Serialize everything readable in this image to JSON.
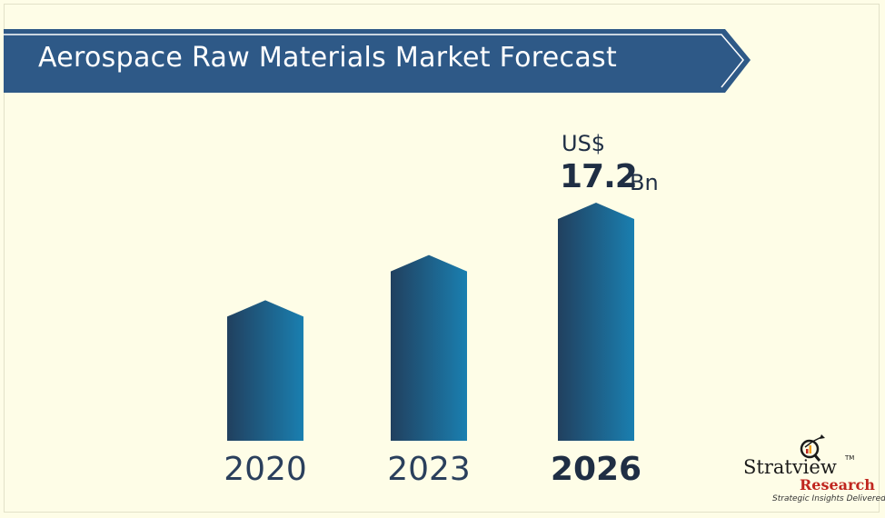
{
  "banner": {
    "title": "Aerospace Raw Materials Market Forecast",
    "color": "#2e5987"
  },
  "callout": {
    "prefix": "US$",
    "value": "17.2",
    "unit": "Bn",
    "color": "#1f2e44"
  },
  "logo": {
    "name": "Stratview",
    "tm": "TM",
    "sub": "Research",
    "tagline": "Strategic Insights Delivered"
  },
  "colors": {
    "background": "#fefde7",
    "bar_dark": "#21405f",
    "bar_light": "#1a7fb0",
    "label": "#2a3f5c",
    "label_bold": "#1f2e44"
  },
  "chart_data": {
    "type": "bar",
    "categories": [
      "2020",
      "2023",
      "2026"
    ],
    "emphasized_category": "2026",
    "values": [
      null,
      null,
      17.2
    ],
    "relative_heights": [
      0.59,
      0.78,
      1.0
    ],
    "title": "",
    "xlabel": "",
    "ylabel": "",
    "grid": false,
    "legend": "none"
  }
}
